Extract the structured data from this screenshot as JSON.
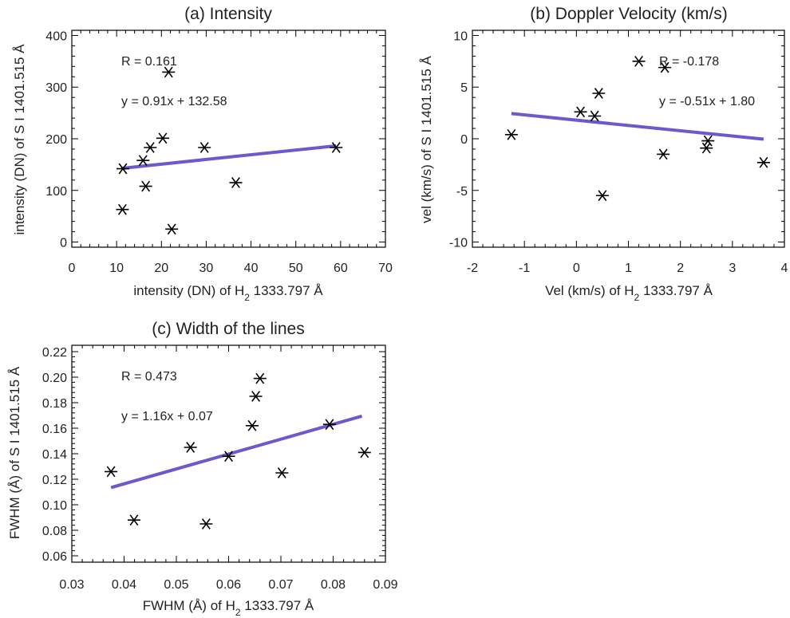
{
  "chart_data": [
    {
      "type": "scatter",
      "title": "(a) Intensity",
      "xlabel_main": "intensity (DN) of H",
      "xlabel_sub": "2",
      "xlabel_tail": " 1333.797 Å",
      "ylabel": "intensity (DN) of S I 1401.515 Å",
      "xlim": [
        0,
        70
      ],
      "ylim": [
        -10,
        410
      ],
      "xticks": [
        0,
        10,
        20,
        30,
        40,
        50,
        60,
        70
      ],
      "yticks": [
        0,
        100,
        200,
        300,
        400
      ],
      "annotations": [
        "R = 0.161",
        "y = 0.91x + 132.58"
      ],
      "fit": {
        "x": [
          11.3,
          59
        ],
        "y": [
          142.9,
          186.3
        ]
      },
      "points": [
        {
          "x": 11.4,
          "y": 142
        },
        {
          "x": 11.3,
          "y": 63
        },
        {
          "x": 15.9,
          "y": 158
        },
        {
          "x": 16.5,
          "y": 108
        },
        {
          "x": 17.5,
          "y": 183
        },
        {
          "x": 20.3,
          "y": 201
        },
        {
          "x": 21.6,
          "y": 329
        },
        {
          "x": 22.3,
          "y": 25
        },
        {
          "x": 29.6,
          "y": 183
        },
        {
          "x": 36.6,
          "y": 115
        },
        {
          "x": 59,
          "y": 183
        }
      ]
    },
    {
      "type": "scatter",
      "title": "(b) Doppler Velocity (km/s)",
      "xlabel_main": "Vel (km/s) of H",
      "xlabel_sub": "2",
      "xlabel_tail": " 1333.797 Å",
      "ylabel": "vel (km/s) of S I 1401.515 Å",
      "xlim": [
        -2,
        4
      ],
      "ylim": [
        -10.5,
        10.5
      ],
      "xticks": [
        -2,
        -1,
        0,
        1,
        2,
        3,
        4
      ],
      "yticks": [
        -10,
        -5,
        0,
        5,
        10
      ],
      "annotations": [
        "R = -0.178",
        "y = -0.51x + 1.80"
      ],
      "fit": {
        "x": [
          -1.25,
          3.6
        ],
        "y": [
          2.44,
          -0.04
        ]
      },
      "points": [
        {
          "x": -1.25,
          "y": 0.4
        },
        {
          "x": 0.08,
          "y": 2.6
        },
        {
          "x": 0.35,
          "y": 2.2
        },
        {
          "x": 0.43,
          "y": 4.4
        },
        {
          "x": 0.5,
          "y": -5.5
        },
        {
          "x": 1.2,
          "y": 7.5
        },
        {
          "x": 1.7,
          "y": 6.9
        },
        {
          "x": 1.67,
          "y": -1.5
        },
        {
          "x": 2.5,
          "y": -0.9
        },
        {
          "x": 2.53,
          "y": -0.2
        },
        {
          "x": 3.6,
          "y": -2.3
        }
      ]
    },
    {
      "type": "scatter",
      "title": "(c) Width of the lines",
      "xlabel_main": "FWHM (Å) of H",
      "xlabel_sub": "2",
      "xlabel_tail": " 1333.797 Å",
      "ylabel": "FWHM (Å) of S I 1401.515 Å",
      "xlim": [
        0.03,
        0.09
      ],
      "ylim": [
        0.055,
        0.225
      ],
      "xticks": [
        0.03,
        0.04,
        0.05,
        0.06,
        0.07,
        0.08,
        0.09
      ],
      "yticks": [
        0.06,
        0.08,
        0.1,
        0.12,
        0.14,
        0.16,
        0.18,
        0.2,
        0.22
      ],
      "decimals": 2,
      "annotations": [
        "R = 0.473",
        "y = 1.16x + 0.07"
      ],
      "fit": {
        "x": [
          0.0375,
          0.0855
        ],
        "y": [
          0.1135,
          0.1695
        ]
      },
      "points": [
        {
          "x": 0.0375,
          "y": 0.126
        },
        {
          "x": 0.0419,
          "y": 0.088
        },
        {
          "x": 0.0527,
          "y": 0.145
        },
        {
          "x": 0.0557,
          "y": 0.085
        },
        {
          "x": 0.06,
          "y": 0.138
        },
        {
          "x": 0.0645,
          "y": 0.162
        },
        {
          "x": 0.0652,
          "y": 0.185
        },
        {
          "x": 0.066,
          "y": 0.199
        },
        {
          "x": 0.0702,
          "y": 0.125
        },
        {
          "x": 0.0793,
          "y": 0.163
        },
        {
          "x": 0.086,
          "y": 0.141
        }
      ]
    }
  ]
}
